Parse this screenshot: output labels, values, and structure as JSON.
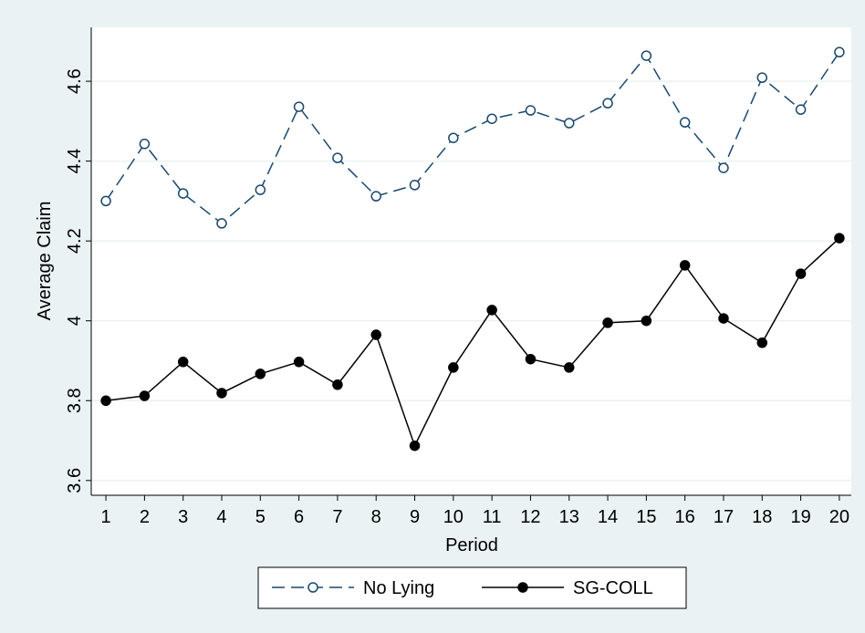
{
  "chart_data": {
    "type": "line",
    "x_label": "Period",
    "y_label": "Average Claim",
    "x": [
      1,
      2,
      3,
      4,
      5,
      6,
      7,
      8,
      9,
      10,
      11,
      12,
      13,
      14,
      15,
      16,
      17,
      18,
      19,
      20
    ],
    "series": [
      {
        "name": "No Lying",
        "color": "#1a476f",
        "dash": true,
        "marker": "hollow",
        "values": [
          4.3,
          4.443,
          4.319,
          4.244,
          4.328,
          4.536,
          4.408,
          4.312,
          4.34,
          4.458,
          4.506,
          4.527,
          4.495,
          4.545,
          4.664,
          4.497,
          4.383,
          4.609,
          4.529,
          4.673
        ]
      },
      {
        "name": "SG-COLL",
        "color": "#000000",
        "dash": false,
        "marker": "filled",
        "values": [
          3.8,
          3.812,
          3.897,
          3.819,
          3.867,
          3.897,
          3.84,
          3.965,
          3.687,
          3.883,
          4.027,
          3.904,
          3.883,
          3.995,
          4.0,
          4.139,
          4.006,
          3.945,
          4.118,
          4.207
        ]
      }
    ],
    "xlim": [
      0.62,
      20.31
    ],
    "xticks": [
      1,
      2,
      3,
      4,
      5,
      6,
      7,
      8,
      9,
      10,
      11,
      12,
      13,
      14,
      15,
      16,
      17,
      18,
      19,
      20
    ],
    "ylim": [
      3.563,
      4.735
    ],
    "yticks": [
      3.6,
      3.8,
      4,
      4.2,
      4.4,
      4.6
    ],
    "grid": true,
    "legend": "bottom"
  }
}
